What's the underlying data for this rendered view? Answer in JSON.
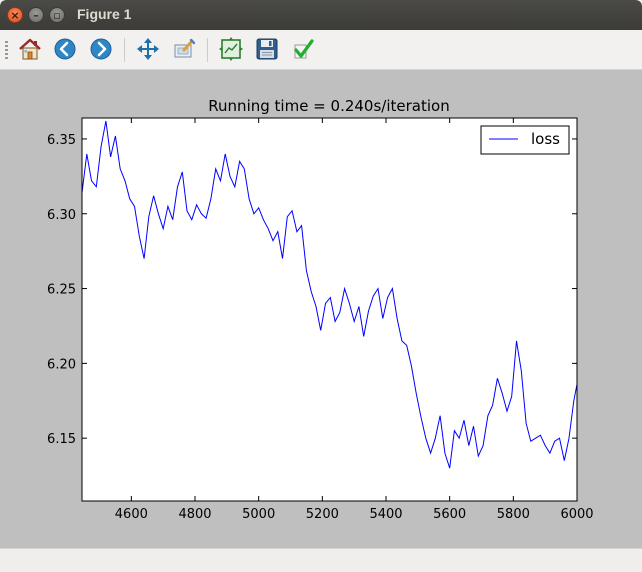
{
  "window": {
    "title": "Figure 1"
  },
  "toolbar": {
    "buttons": [
      {
        "name": "home",
        "icon": "home-icon"
      },
      {
        "name": "back",
        "icon": "back-arrow-icon"
      },
      {
        "name": "forward",
        "icon": "forward-arrow-icon"
      },
      {
        "name": "pan",
        "icon": "pan-arrows-icon"
      },
      {
        "name": "zoom",
        "icon": "zoom-rect-icon"
      },
      {
        "name": "subplots",
        "icon": "subplots-icon"
      },
      {
        "name": "save",
        "icon": "floppy-disk-icon"
      },
      {
        "name": "edit",
        "icon": "checkmark-icon"
      }
    ]
  },
  "colors": {
    "series": "#0000ff",
    "figure_bg": "#bfbfbf",
    "axes_bg": "#ffffff"
  },
  "chart_data": {
    "type": "line",
    "title": "Running time = 0.240s/iteration",
    "xlabel": "",
    "ylabel": "",
    "xlim": [
      4445,
      6000
    ],
    "ylim": [
      6.108,
      6.364
    ],
    "xticks": [
      4600,
      4800,
      5000,
      5200,
      5400,
      5600,
      5800,
      6000
    ],
    "xtick_labels": [
      "4600",
      "4800",
      "5000",
      "5200",
      "5400",
      "5600",
      "5800",
      "6000"
    ],
    "yticks": [
      6.15,
      6.2,
      6.25,
      6.3,
      6.35
    ],
    "ytick_labels": [
      "6.15",
      "6.20",
      "6.25",
      "6.30",
      "6.35"
    ],
    "grid": false,
    "legend_position": "top-right",
    "series": [
      {
        "name": "loss",
        "color": "#0000ff",
        "x": [
          4445,
          4460,
          4475,
          4490,
          4505,
          4520,
          4535,
          4550,
          4565,
          4580,
          4595,
          4610,
          4625,
          4640,
          4655,
          4670,
          4685,
          4700,
          4715,
          4730,
          4745,
          4760,
          4775,
          4790,
          4805,
          4820,
          4835,
          4850,
          4865,
          4880,
          4895,
          4910,
          4925,
          4940,
          4955,
          4970,
          4985,
          5000,
          5015,
          5030,
          5045,
          5060,
          5075,
          5090,
          5105,
          5120,
          5135,
          5150,
          5165,
          5180,
          5195,
          5210,
          5225,
          5240,
          5255,
          5270,
          5285,
          5300,
          5315,
          5330,
          5345,
          5360,
          5375,
          5390,
          5405,
          5420,
          5435,
          5450,
          5465,
          5480,
          5495,
          5510,
          5525,
          5540,
          5555,
          5570,
          5585,
          5600,
          5615,
          5630,
          5645,
          5660,
          5675,
          5690,
          5705,
          5720,
          5735,
          5750,
          5765,
          5780,
          5795,
          5810,
          5825,
          5840,
          5855,
          5870,
          5885,
          5900,
          5915,
          5930,
          5945,
          5960,
          5975,
          5990,
          6000
        ],
        "y": [
          6.314,
          6.34,
          6.322,
          6.318,
          6.345,
          6.362,
          6.338,
          6.352,
          6.33,
          6.322,
          6.31,
          6.305,
          6.285,
          6.27,
          6.298,
          6.312,
          6.3,
          6.29,
          6.305,
          6.296,
          6.318,
          6.328,
          6.302,
          6.296,
          6.306,
          6.3,
          6.297,
          6.31,
          6.33,
          6.322,
          6.34,
          6.325,
          6.318,
          6.335,
          6.33,
          6.31,
          6.3,
          6.304,
          6.296,
          6.29,
          6.282,
          6.288,
          6.27,
          6.298,
          6.302,
          6.288,
          6.292,
          6.262,
          6.248,
          6.238,
          6.222,
          6.24,
          6.244,
          6.228,
          6.234,
          6.25,
          6.24,
          6.228,
          6.238,
          6.218,
          6.235,
          6.245,
          6.25,
          6.23,
          6.244,
          6.25,
          6.23,
          6.215,
          6.212,
          6.198,
          6.18,
          6.164,
          6.15,
          6.14,
          6.15,
          6.165,
          6.14,
          6.13,
          6.155,
          6.15,
          6.162,
          6.145,
          6.158,
          6.138,
          6.145,
          6.165,
          6.172,
          6.19,
          6.18,
          6.168,
          6.178,
          6.215,
          6.195,
          6.16,
          6.148,
          6.15,
          6.152,
          6.145,
          6.14,
          6.148,
          6.15,
          6.135,
          6.15,
          6.175,
          6.186
        ]
      }
    ]
  }
}
